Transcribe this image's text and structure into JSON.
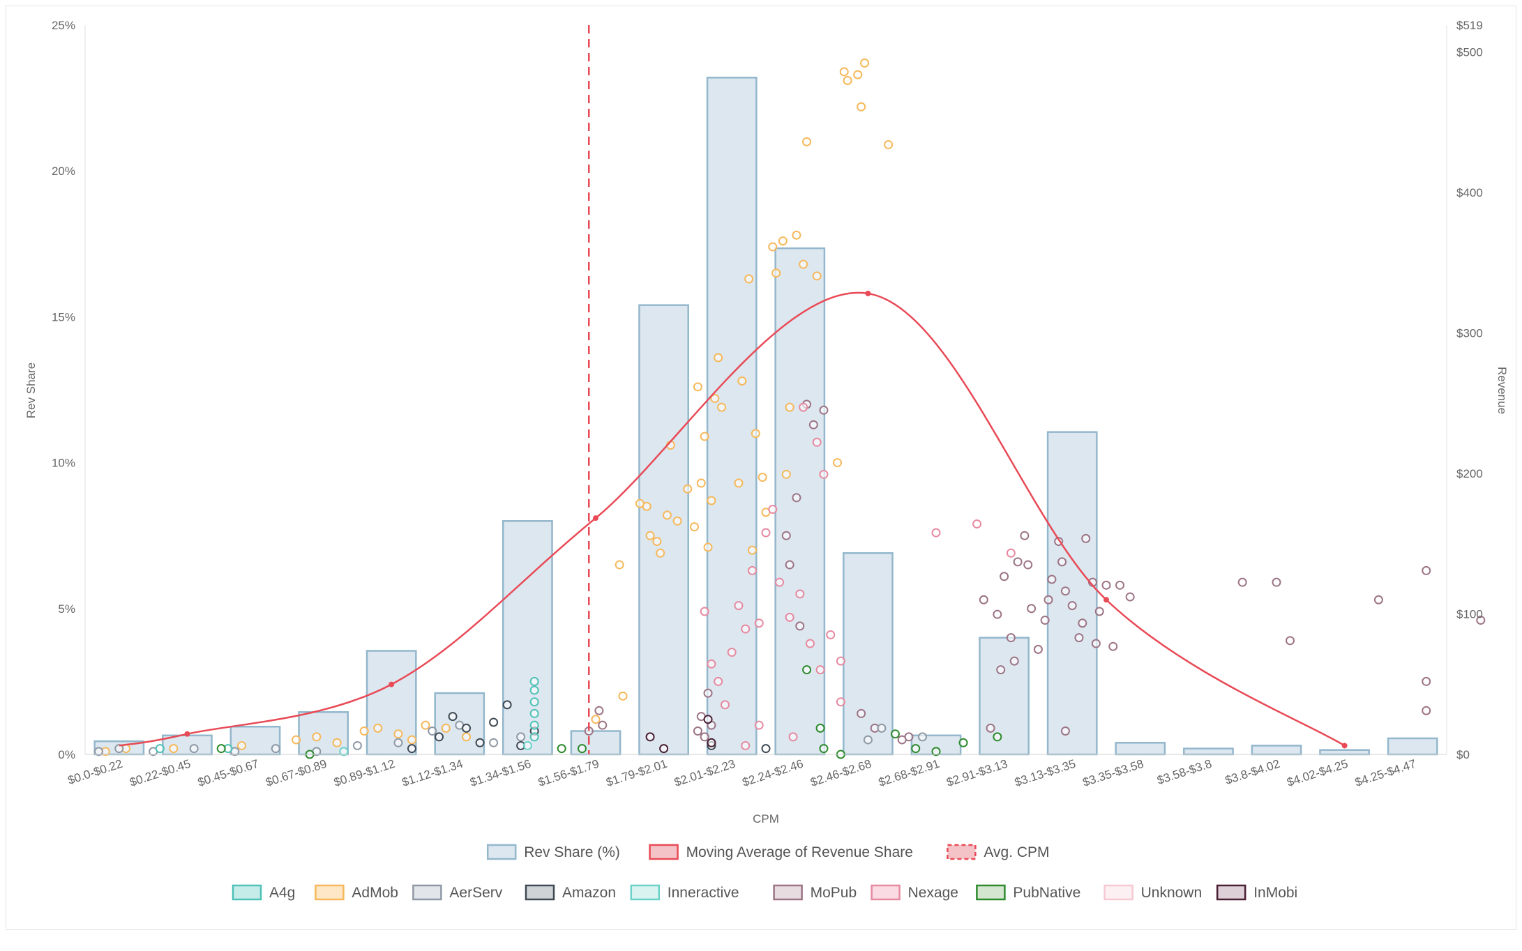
{
  "chart_data": {
    "type": "bar",
    "xlabel": "CPM",
    "ylabel": "Rev Share",
    "y2label": "Revenue",
    "ylim": [
      0,
      25
    ],
    "y2lim": [
      0,
      519
    ],
    "y_ticks": [
      "0%",
      "5%",
      "10%",
      "15%",
      "20%",
      "25%"
    ],
    "y2_ticks": [
      {
        "label": "$0",
        "value": 0
      },
      {
        "label": "$100",
        "value": 100
      },
      {
        "label": "$200",
        "value": 200
      },
      {
        "label": "$300",
        "value": 300
      },
      {
        "label": "$400",
        "value": 400
      },
      {
        "label": "$500",
        "value": 500
      },
      {
        "label": "$519",
        "value": 519
      }
    ],
    "categories": [
      "$0.0-$0.22",
      "$0.22-$0.45",
      "$0.45-$0.67",
      "$0.67-$0.89",
      "$0.89-$1.12",
      "$1.12-$1.34",
      "$1.34-$1.56",
      "$1.56-$1.79",
      "$1.79-$2.01",
      "$2.01-$2.23",
      "$2.24-$2.46",
      "$2.46-$2.68",
      "$2.68-$2.91",
      "$2.91-$3.13",
      "$3.13-$3.35",
      "$3.35-$3.58",
      "$3.58-$3.8",
      "$3.8-$4.02",
      "$4.02-$4.25",
      "$4.25-$4.47"
    ],
    "series": [
      {
        "name": "Rev Share (%)",
        "type": "bar",
        "values": [
          0.45,
          0.65,
          0.95,
          1.45,
          3.55,
          2.1,
          8.0,
          0.8,
          15.4,
          23.2,
          17.35,
          6.9,
          0.65,
          4.0,
          11.05,
          0.4,
          0.2,
          0.3,
          0.15,
          0.55
        ]
      },
      {
        "name": "Moving Average of Revenue Share",
        "type": "line",
        "x": [
          1.5,
          4.5,
          7.5,
          11.5,
          15.0,
          18.5
        ],
        "values": [
          0.7,
          2.4,
          8.1,
          15.8,
          5.3,
          0.3
        ]
      },
      {
        "name": "Avg. CPM",
        "type": "vline",
        "position_category_index": 7.4
      }
    ],
    "legend": {
      "row1": [
        {
          "label": "Rev Share (%)",
          "fill": "#dde7ef",
          "stroke": "#93b7cc",
          "dash": false
        },
        {
          "label": "Moving Average of Revenue Share",
          "fill": "#f4c3c7",
          "stroke": "#e84a56",
          "dash": false
        },
        {
          "label": "Avg. CPM",
          "fill": "#f4c3c7",
          "stroke": "#e84a56",
          "dash": true
        }
      ],
      "row2": [
        {
          "label": "A4g",
          "fill": "#c5ece8",
          "stroke": "#4fc1b7"
        },
        {
          "label": "AdMob",
          "fill": "#fde7c6",
          "stroke": "#f6b85b"
        },
        {
          "label": "AerServ",
          "fill": "#e2e5e9",
          "stroke": "#8f99a5"
        },
        {
          "label": "Amazon",
          "fill": "#d0d3d6",
          "stroke": "#3f4a54"
        },
        {
          "label": "Inneractive",
          "fill": "#d9f3f1",
          "stroke": "#6bd2c8"
        },
        {
          "label": "MoPub",
          "fill": "#e7dde1",
          "stroke": "#9c7485"
        },
        {
          "label": "Nexage",
          "fill": "#fbdbe3",
          "stroke": "#e68aa0"
        },
        {
          "label": "PubNative",
          "fill": "#d4e6cf",
          "stroke": "#2d8a2d"
        },
        {
          "label": "Unknown",
          "fill": "#fdf0f2",
          "stroke": "#f6c9d3"
        },
        {
          "label": "InMobi",
          "fill": "#ddd0d6",
          "stroke": "#4a1f33"
        }
      ]
    },
    "scatter_colors": {
      "A4g": "#4fc1b7",
      "AdMob": "#f6b85b",
      "AerServ": "#8f99a5",
      "Amazon": "#3f4a54",
      "Inneractive": "#6bd2c8",
      "MoPub": "#9c7485",
      "Nexage": "#e68aa0",
      "PubNative": "#2d8a2d",
      "Unknown": "#f6c9d3",
      "InMobi": "#4a1f33"
    },
    "scatter_points": [
      {
        "s": "AdMob",
        "x": 8.25,
        "y": 8.5
      },
      {
        "s": "AdMob",
        "x": 8.4,
        "y": 7.3
      },
      {
        "s": "AdMob",
        "x": 8.55,
        "y": 8.2
      },
      {
        "s": "AdMob",
        "x": 8.7,
        "y": 8.0
      },
      {
        "s": "AdMob",
        "x": 8.85,
        "y": 9.1
      },
      {
        "s": "AdMob",
        "x": 9.0,
        "y": 12.6
      },
      {
        "s": "AdMob",
        "x": 9.1,
        "y": 10.9
      },
      {
        "s": "AdMob",
        "x": 9.2,
        "y": 8.7
      },
      {
        "s": "AdMob",
        "x": 9.3,
        "y": 13.6
      },
      {
        "s": "AdMob",
        "x": 8.6,
        "y": 10.6
      },
      {
        "s": "AdMob",
        "x": 8.95,
        "y": 7.8
      },
      {
        "s": "AdMob",
        "x": 9.05,
        "y": 9.3
      },
      {
        "s": "AdMob",
        "x": 9.25,
        "y": 12.2
      },
      {
        "s": "AdMob",
        "x": 9.35,
        "y": 11.9
      },
      {
        "s": "AdMob",
        "x": 8.45,
        "y": 6.9
      },
      {
        "s": "AdMob",
        "x": 9.15,
        "y": 7.1
      },
      {
        "s": "AdMob",
        "x": 9.6,
        "y": 9.3
      },
      {
        "s": "AdMob",
        "x": 9.75,
        "y": 16.3
      },
      {
        "s": "AdMob",
        "x": 9.85,
        "y": 11.0
      },
      {
        "s": "AdMob",
        "x": 9.95,
        "y": 9.5
      },
      {
        "s": "AdMob",
        "x": 10.1,
        "y": 17.4
      },
      {
        "s": "AdMob",
        "x": 10.15,
        "y": 16.5
      },
      {
        "s": "AdMob",
        "x": 10.25,
        "y": 17.6
      },
      {
        "s": "AdMob",
        "x": 10.35,
        "y": 11.9
      },
      {
        "s": "AdMob",
        "x": 9.65,
        "y": 12.8
      },
      {
        "s": "AdMob",
        "x": 9.8,
        "y": 7.0
      },
      {
        "s": "AdMob",
        "x": 10.0,
        "y": 8.3
      },
      {
        "s": "AdMob",
        "x": 10.3,
        "y": 9.6
      },
      {
        "s": "AdMob",
        "x": 10.45,
        "y": 17.8
      },
      {
        "s": "AdMob",
        "x": 10.55,
        "y": 16.8
      },
      {
        "s": "AdMob",
        "x": 10.6,
        "y": 21.0
      },
      {
        "s": "AdMob",
        "x": 10.75,
        "y": 16.4
      },
      {
        "s": "AdMob",
        "x": 11.15,
        "y": 23.4
      },
      {
        "s": "AdMob",
        "x": 11.2,
        "y": 23.1
      },
      {
        "s": "AdMob",
        "x": 11.35,
        "y": 23.3
      },
      {
        "s": "AdMob",
        "x": 11.45,
        "y": 23.7
      },
      {
        "s": "AdMob",
        "x": 11.4,
        "y": 22.2
      },
      {
        "s": "AdMob",
        "x": 11.8,
        "y": 20.9
      },
      {
        "s": "AdMob",
        "x": 11.05,
        "y": 10.0
      },
      {
        "s": "AdMob",
        "x": 7.85,
        "y": 6.5
      },
      {
        "s": "AdMob",
        "x": 7.9,
        "y": 2.0
      },
      {
        "s": "AdMob",
        "x": 7.5,
        "y": 1.2
      },
      {
        "s": "AdMob",
        "x": 8.15,
        "y": 8.6
      },
      {
        "s": "AdMob",
        "x": 8.3,
        "y": 7.5
      },
      {
        "s": "AdMob",
        "x": 0.3,
        "y": 0.1
      },
      {
        "s": "AdMob",
        "x": 0.6,
        "y": 0.2
      },
      {
        "s": "AdMob",
        "x": 1.3,
        "y": 0.2
      },
      {
        "s": "AdMob",
        "x": 2.3,
        "y": 0.3
      },
      {
        "s": "AdMob",
        "x": 3.1,
        "y": 0.5
      },
      {
        "s": "AdMob",
        "x": 3.4,
        "y": 0.6
      },
      {
        "s": "AdMob",
        "x": 3.7,
        "y": 0.4
      },
      {
        "s": "AdMob",
        "x": 4.1,
        "y": 0.8
      },
      {
        "s": "AdMob",
        "x": 4.3,
        "y": 0.9
      },
      {
        "s": "AdMob",
        "x": 4.6,
        "y": 0.7
      },
      {
        "s": "AdMob",
        "x": 5.0,
        "y": 1.0
      },
      {
        "s": "AdMob",
        "x": 5.3,
        "y": 0.9
      },
      {
        "s": "AdMob",
        "x": 5.6,
        "y": 0.6
      },
      {
        "s": "AdMob",
        "x": 4.8,
        "y": 0.5
      },
      {
        "s": "MoPub",
        "x": 9.0,
        "y": 0.8
      },
      {
        "s": "MoPub",
        "x": 9.05,
        "y": 1.3
      },
      {
        "s": "MoPub",
        "x": 9.1,
        "y": 0.6
      },
      {
        "s": "MoPub",
        "x": 9.15,
        "y": 2.1
      },
      {
        "s": "MoPub",
        "x": 9.2,
        "y": 1.0
      },
      {
        "s": "MoPub",
        "x": 10.3,
        "y": 7.5
      },
      {
        "s": "MoPub",
        "x": 10.45,
        "y": 8.8
      },
      {
        "s": "MoPub",
        "x": 10.6,
        "y": 12.0
      },
      {
        "s": "MoPub",
        "x": 10.7,
        "y": 11.3
      },
      {
        "s": "MoPub",
        "x": 10.85,
        "y": 11.8
      },
      {
        "s": "MoPub",
        "x": 10.35,
        "y": 6.5
      },
      {
        "s": "MoPub",
        "x": 10.5,
        "y": 4.4
      },
      {
        "s": "MoPub",
        "x": 13.2,
        "y": 5.3
      },
      {
        "s": "MoPub",
        "x": 13.4,
        "y": 4.8
      },
      {
        "s": "MoPub",
        "x": 13.5,
        "y": 6.1
      },
      {
        "s": "MoPub",
        "x": 13.6,
        "y": 4.0
      },
      {
        "s": "MoPub",
        "x": 13.7,
        "y": 6.6
      },
      {
        "s": "MoPub",
        "x": 13.8,
        "y": 7.5
      },
      {
        "s": "MoPub",
        "x": 13.9,
        "y": 5.0
      },
      {
        "s": "MoPub",
        "x": 14.0,
        "y": 3.6
      },
      {
        "s": "MoPub",
        "x": 14.1,
        "y": 4.6
      },
      {
        "s": "MoPub",
        "x": 14.2,
        "y": 6.0
      },
      {
        "s": "MoPub",
        "x": 14.3,
        "y": 7.3
      },
      {
        "s": "MoPub",
        "x": 14.4,
        "y": 5.6
      },
      {
        "s": "MoPub",
        "x": 14.5,
        "y": 5.1
      },
      {
        "s": "MoPub",
        "x": 14.6,
        "y": 4.0
      },
      {
        "s": "MoPub",
        "x": 14.7,
        "y": 7.4
      },
      {
        "s": "MoPub",
        "x": 14.8,
        "y": 5.9
      },
      {
        "s": "MoPub",
        "x": 14.9,
        "y": 4.9
      },
      {
        "s": "MoPub",
        "x": 15.0,
        "y": 5.8
      },
      {
        "s": "MoPub",
        "x": 15.1,
        "y": 3.7
      },
      {
        "s": "MoPub",
        "x": 15.2,
        "y": 5.8
      },
      {
        "s": "MoPub",
        "x": 13.45,
        "y": 2.9
      },
      {
        "s": "MoPub",
        "x": 13.65,
        "y": 3.2
      },
      {
        "s": "MoPub",
        "x": 13.85,
        "y": 6.5
      },
      {
        "s": "MoPub",
        "x": 14.15,
        "y": 5.3
      },
      {
        "s": "MoPub",
        "x": 14.35,
        "y": 6.6
      },
      {
        "s": "MoPub",
        "x": 14.65,
        "y": 4.5
      },
      {
        "s": "MoPub",
        "x": 14.85,
        "y": 3.8
      },
      {
        "s": "MoPub",
        "x": 13.3,
        "y": 0.9
      },
      {
        "s": "MoPub",
        "x": 14.4,
        "y": 0.8
      },
      {
        "s": "MoPub",
        "x": 15.35,
        "y": 5.4
      },
      {
        "s": "MoPub",
        "x": 17.0,
        "y": 5.9
      },
      {
        "s": "MoPub",
        "x": 17.5,
        "y": 5.9
      },
      {
        "s": "MoPub",
        "x": 17.7,
        "y": 3.9
      },
      {
        "s": "MoPub",
        "x": 19.0,
        "y": 5.3
      },
      {
        "s": "MoPub",
        "x": 19.7,
        "y": 6.3
      },
      {
        "s": "MoPub",
        "x": 19.7,
        "y": 2.5
      },
      {
        "s": "MoPub",
        "x": 19.7,
        "y": 1.5
      },
      {
        "s": "MoPub",
        "x": 20.5,
        "y": 4.6
      },
      {
        "s": "MoPub",
        "x": 12.1,
        "y": 0.6
      },
      {
        "s": "MoPub",
        "x": 11.6,
        "y": 0.9
      },
      {
        "s": "MoPub",
        "x": 11.4,
        "y": 1.4
      },
      {
        "s": "MoPub",
        "x": 12.0,
        "y": 0.5
      },
      {
        "s": "MoPub",
        "x": 7.55,
        "y": 1.5
      },
      {
        "s": "MoPub",
        "x": 7.6,
        "y": 1.0
      },
      {
        "s": "MoPub",
        "x": 7.4,
        "y": 0.8
      },
      {
        "s": "Nexage",
        "x": 9.1,
        "y": 4.9
      },
      {
        "s": "Nexage",
        "x": 9.2,
        "y": 3.1
      },
      {
        "s": "Nexage",
        "x": 9.3,
        "y": 2.5
      },
      {
        "s": "Nexage",
        "x": 9.4,
        "y": 1.7
      },
      {
        "s": "Nexage",
        "x": 9.5,
        "y": 3.5
      },
      {
        "s": "Nexage",
        "x": 9.6,
        "y": 5.1
      },
      {
        "s": "Nexage",
        "x": 9.7,
        "y": 4.3
      },
      {
        "s": "Nexage",
        "x": 9.8,
        "y": 6.3
      },
      {
        "s": "Nexage",
        "x": 9.9,
        "y": 4.5
      },
      {
        "s": "Nexage",
        "x": 10.0,
        "y": 7.6
      },
      {
        "s": "Nexage",
        "x": 10.1,
        "y": 8.4
      },
      {
        "s": "Nexage",
        "x": 10.2,
        "y": 5.9
      },
      {
        "s": "Nexage",
        "x": 10.35,
        "y": 4.7
      },
      {
        "s": "Nexage",
        "x": 10.5,
        "y": 5.5
      },
      {
        "s": "Nexage",
        "x": 10.65,
        "y": 3.8
      },
      {
        "s": "Nexage",
        "x": 10.8,
        "y": 2.9
      },
      {
        "s": "Nexage",
        "x": 10.95,
        "y": 4.1
      },
      {
        "s": "Nexage",
        "x": 11.1,
        "y": 3.2
      },
      {
        "s": "Nexage",
        "x": 10.55,
        "y": 11.9
      },
      {
        "s": "Nexage",
        "x": 10.75,
        "y": 10.7
      },
      {
        "s": "Nexage",
        "x": 10.85,
        "y": 9.6
      },
      {
        "s": "Nexage",
        "x": 12.5,
        "y": 7.6
      },
      {
        "s": "Nexage",
        "x": 13.1,
        "y": 7.9
      },
      {
        "s": "Nexage",
        "x": 13.6,
        "y": 6.9
      },
      {
        "s": "Nexage",
        "x": 9.7,
        "y": 0.3
      },
      {
        "s": "Nexage",
        "x": 9.9,
        "y": 1.0
      },
      {
        "s": "Nexage",
        "x": 10.4,
        "y": 0.6
      },
      {
        "s": "Nexage",
        "x": 11.1,
        "y": 1.8
      },
      {
        "s": "AerServ",
        "x": 0.2,
        "y": 0.1
      },
      {
        "s": "AerServ",
        "x": 0.5,
        "y": 0.2
      },
      {
        "s": "AerServ",
        "x": 1.0,
        "y": 0.1
      },
      {
        "s": "AerServ",
        "x": 1.6,
        "y": 0.2
      },
      {
        "s": "AerServ",
        "x": 2.2,
        "y": 0.1
      },
      {
        "s": "AerServ",
        "x": 2.8,
        "y": 0.2
      },
      {
        "s": "AerServ",
        "x": 3.4,
        "y": 0.1
      },
      {
        "s": "AerServ",
        "x": 4.0,
        "y": 0.3
      },
      {
        "s": "AerServ",
        "x": 4.6,
        "y": 0.4
      },
      {
        "s": "AerServ",
        "x": 5.1,
        "y": 0.8
      },
      {
        "s": "AerServ",
        "x": 5.5,
        "y": 1.0
      },
      {
        "s": "AerServ",
        "x": 6.0,
        "y": 0.4
      },
      {
        "s": "AerServ",
        "x": 6.4,
        "y": 0.6
      },
      {
        "s": "AerServ",
        "x": 11.5,
        "y": 0.5
      },
      {
        "s": "AerServ",
        "x": 11.7,
        "y": 0.9
      },
      {
        "s": "AerServ",
        "x": 12.3,
        "y": 0.6
      },
      {
        "s": "Amazon",
        "x": 5.2,
        "y": 0.6
      },
      {
        "s": "Amazon",
        "x": 5.4,
        "y": 1.3
      },
      {
        "s": "Amazon",
        "x": 5.6,
        "y": 0.9
      },
      {
        "s": "Amazon",
        "x": 5.8,
        "y": 0.4
      },
      {
        "s": "Amazon",
        "x": 6.0,
        "y": 1.1
      },
      {
        "s": "Amazon",
        "x": 6.2,
        "y": 1.7
      },
      {
        "s": "Amazon",
        "x": 6.4,
        "y": 0.3
      },
      {
        "s": "Amazon",
        "x": 6.6,
        "y": 0.8
      },
      {
        "s": "Amazon",
        "x": 4.8,
        "y": 0.2
      },
      {
        "s": "Amazon",
        "x": 9.2,
        "y": 0.3
      },
      {
        "s": "Amazon",
        "x": 10.0,
        "y": 0.2
      },
      {
        "s": "A4g",
        "x": 6.6,
        "y": 2.5
      },
      {
        "s": "A4g",
        "x": 6.6,
        "y": 2.2
      },
      {
        "s": "A4g",
        "x": 6.6,
        "y": 1.8
      },
      {
        "s": "A4g",
        "x": 6.6,
        "y": 1.4
      },
      {
        "s": "A4g",
        "x": 6.6,
        "y": 1.0
      },
      {
        "s": "A4g",
        "x": 6.6,
        "y": 0.6
      },
      {
        "s": "A4g",
        "x": 1.1,
        "y": 0.2
      },
      {
        "s": "A4g",
        "x": 2.1,
        "y": 0.2
      },
      {
        "s": "Inneractive",
        "x": 3.8,
        "y": 0.1
      },
      {
        "s": "Inneractive",
        "x": 6.5,
        "y": 0.3
      },
      {
        "s": "PubNative",
        "x": 2.0,
        "y": 0.2
      },
      {
        "s": "PubNative",
        "x": 3.3,
        "y": 0.0
      },
      {
        "s": "PubNative",
        "x": 7.0,
        "y": 0.2
      },
      {
        "s": "PubNative",
        "x": 7.3,
        "y": 0.2
      },
      {
        "s": "PubNative",
        "x": 10.6,
        "y": 2.9
      },
      {
        "s": "PubNative",
        "x": 10.8,
        "y": 0.9
      },
      {
        "s": "PubNative",
        "x": 10.85,
        "y": 0.2
      },
      {
        "s": "PubNative",
        "x": 11.1,
        "y": 0.0
      },
      {
        "s": "PubNative",
        "x": 11.9,
        "y": 0.7
      },
      {
        "s": "PubNative",
        "x": 12.2,
        "y": 0.2
      },
      {
        "s": "PubNative",
        "x": 12.5,
        "y": 0.1
      },
      {
        "s": "PubNative",
        "x": 12.9,
        "y": 0.4
      },
      {
        "s": "PubNative",
        "x": 13.4,
        "y": 0.6
      },
      {
        "s": "InMobi",
        "x": 9.15,
        "y": 1.2
      },
      {
        "s": "InMobi",
        "x": 9.2,
        "y": 0.4
      },
      {
        "s": "InMobi",
        "x": 8.3,
        "y": 0.6
      },
      {
        "s": "InMobi",
        "x": 8.5,
        "y": 0.2
      }
    ]
  }
}
